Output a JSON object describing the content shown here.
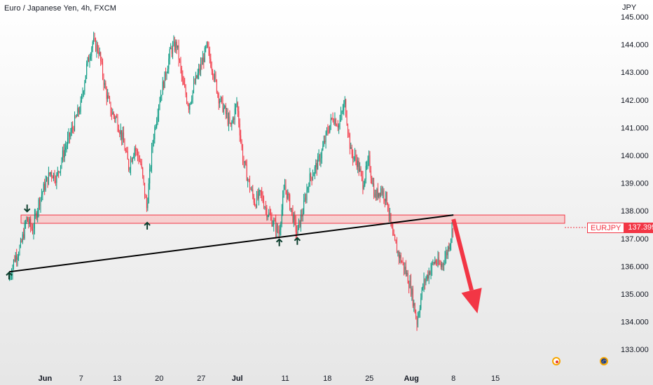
{
  "header": {
    "title": "Euro / Japanese Yen, 4h, FXCM",
    "currency": "JPY"
  },
  "price_tag": {
    "symbol": "EURJPY",
    "value": "137.399"
  },
  "colors": {
    "up": "#089981",
    "down": "#f23645",
    "zone_fill": "#f7c6c6",
    "zone_stroke": "#f23645",
    "trendline": "#000000",
    "arrow_marker": "#0b3d2c",
    "forecast_arrow": "#f23645"
  },
  "icons": [
    "arrow-up-icon",
    "arrow-down-icon",
    "forecast-arrow-icon",
    "economic-event-icon",
    "eu-flag-icon"
  ],
  "chart_data": {
    "type": "candlestick",
    "title": "Euro / Japanese Yen, 4h, FXCM",
    "ylabel": "JPY",
    "ylim": [
      132.9,
      145.2
    ],
    "grid": false,
    "y_ticks": [
      "145.000",
      "144.000",
      "143.000",
      "142.000",
      "141.000",
      "140.000",
      "139.000",
      "138.000",
      "137.000",
      "136.000",
      "135.000",
      "134.000",
      "133.000"
    ],
    "x_ticks": [
      "Jun",
      "7",
      "13",
      "20",
      "27",
      "Jul",
      "11",
      "18",
      "25",
      "Aug",
      "8",
      "15"
    ],
    "x_tick_dates": [
      "2023-06-01",
      "2023-06-07",
      "2023-06-13",
      "2023-06-20",
      "2023-06-27",
      "2023-07-03",
      "2023-07-11",
      "2023-07-18",
      "2023-07-25",
      "2023-08-01",
      "2023-08-08",
      "2023-08-15"
    ],
    "last_price": 137.399,
    "support_zone": {
      "from": 137.55,
      "to": 137.85
    },
    "trendline": [
      {
        "date": "2023-05-26",
        "price": 135.8
      },
      {
        "date": "2023-08-08",
        "price": 137.85
      }
    ],
    "arrows": [
      {
        "date": "2023-05-26",
        "price": 135.65,
        "direction": "up"
      },
      {
        "date": "2023-05-29",
        "price": 138.1,
        "direction": "down"
      },
      {
        "date": "2023-06-18",
        "price": 137.45,
        "direction": "up"
      },
      {
        "date": "2023-07-10",
        "price": 136.85,
        "direction": "up"
      },
      {
        "date": "2023-07-13",
        "price": 136.9,
        "direction": "up"
      }
    ],
    "forecast_arrow": {
      "from": {
        "date": "2023-08-08",
        "price": 137.7
      },
      "to": {
        "date": "2023-08-12",
        "price": 134.3
      }
    },
    "events": [
      {
        "date": "2023-08-08",
        "icon": "economic-event-icon"
      },
      {
        "date": "2023-08-14",
        "icon": "eu-flag-icon"
      }
    ],
    "price_path": [
      [
        "2023-05-26",
        135.5
      ],
      [
        "2023-05-27",
        136.3
      ],
      [
        "2023-05-28",
        136.7
      ],
      [
        "2023-05-29",
        137.7
      ],
      [
        "2023-05-30",
        137.3
      ],
      [
        "2023-05-31",
        138.3
      ],
      [
        "2023-06-01",
        138.9
      ],
      [
        "2023-06-02",
        139.4
      ],
      [
        "2023-06-03",
        139.2
      ],
      [
        "2023-06-04",
        140.0
      ],
      [
        "2023-06-05",
        140.6
      ],
      [
        "2023-06-06",
        141.2
      ],
      [
        "2023-06-07",
        141.8
      ],
      [
        "2023-06-08",
        143.2
      ],
      [
        "2023-06-09",
        144.1
      ],
      [
        "2023-06-10",
        143.8
      ],
      [
        "2023-06-11",
        142.5
      ],
      [
        "2023-06-12",
        141.6
      ],
      [
        "2023-06-13",
        141.3
      ],
      [
        "2023-06-14",
        140.6
      ],
      [
        "2023-06-15",
        139.6
      ],
      [
        "2023-06-16",
        140.3
      ],
      [
        "2023-06-17",
        139.7
      ],
      [
        "2023-06-18",
        138.1
      ],
      [
        "2023-06-19",
        140.5
      ],
      [
        "2023-06-20",
        141.9
      ],
      [
        "2023-06-21",
        142.8
      ],
      [
        "2023-06-22",
        143.8
      ],
      [
        "2023-06-23",
        144.0
      ],
      [
        "2023-06-24",
        142.6
      ],
      [
        "2023-06-25",
        141.8
      ],
      [
        "2023-06-26",
        142.6
      ],
      [
        "2023-06-27",
        143.2
      ],
      [
        "2023-06-28",
        143.9
      ],
      [
        "2023-06-29",
        143.1
      ],
      [
        "2023-06-30",
        142.1
      ],
      [
        "2023-07-01",
        141.6
      ],
      [
        "2023-07-02",
        141.0
      ],
      [
        "2023-07-03",
        141.9
      ],
      [
        "2023-07-04",
        139.9
      ],
      [
        "2023-07-05",
        139.0
      ],
      [
        "2023-07-06",
        138.3
      ],
      [
        "2023-07-07",
        138.6
      ],
      [
        "2023-07-08",
        138.0
      ],
      [
        "2023-07-09",
        137.6
      ],
      [
        "2023-07-10",
        137.2
      ],
      [
        "2023-07-11",
        138.9
      ],
      [
        "2023-07-12",
        138.1
      ],
      [
        "2023-07-13",
        137.2
      ],
      [
        "2023-07-14",
        138.0
      ],
      [
        "2023-07-15",
        139.1
      ],
      [
        "2023-07-16",
        139.5
      ],
      [
        "2023-07-17",
        140.0
      ],
      [
        "2023-07-18",
        140.8
      ],
      [
        "2023-07-19",
        141.4
      ],
      [
        "2023-07-20",
        141.1
      ],
      [
        "2023-07-21",
        141.9
      ],
      [
        "2023-07-22",
        140.1
      ],
      [
        "2023-07-23",
        139.8
      ],
      [
        "2023-07-24",
        139.0
      ],
      [
        "2023-07-25",
        139.8
      ],
      [
        "2023-07-26",
        138.5
      ],
      [
        "2023-07-27",
        138.8
      ],
      [
        "2023-07-28",
        138.4
      ],
      [
        "2023-07-29",
        137.0
      ],
      [
        "2023-07-30",
        136.4
      ],
      [
        "2023-07-31",
        135.9
      ],
      [
        "2023-08-01",
        135.2
      ],
      [
        "2023-08-02",
        134.0
      ],
      [
        "2023-08-03",
        135.3
      ],
      [
        "2023-08-04",
        135.8
      ],
      [
        "2023-08-05",
        136.2
      ],
      [
        "2023-08-06",
        136.0
      ],
      [
        "2023-08-07",
        136.5
      ],
      [
        "2023-08-08",
        137.4
      ]
    ]
  }
}
